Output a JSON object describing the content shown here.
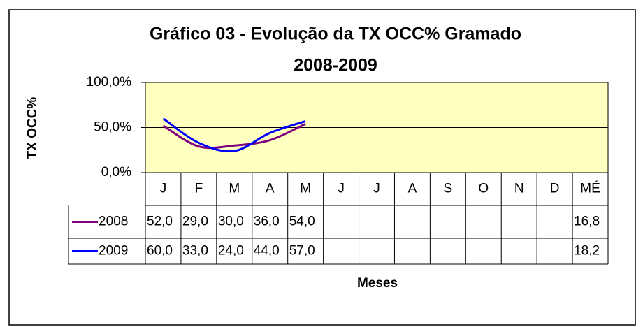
{
  "chart_data": {
    "type": "line",
    "title": [
      "Gráfico 03 - Evolução da TX OCC% Gramado",
      "2008-2009"
    ],
    "x_label": "Meses",
    "y_label": "TX OCC%",
    "categories": [
      "J",
      "F",
      "M",
      "A",
      "M",
      "J",
      "J",
      "A",
      "S",
      "O",
      "N",
      "D",
      "MÉ"
    ],
    "series": [
      {
        "name": "2008",
        "color": "#800080",
        "values": [
          52,
          29,
          30,
          36,
          54,
          null,
          null,
          null,
          null,
          null,
          null,
          null,
          16.8
        ],
        "value_labels": [
          "52,0",
          "29,0",
          "30,0",
          "36,0",
          "54,0",
          null,
          null,
          null,
          null,
          null,
          null,
          null,
          "16,8"
        ]
      },
      {
        "name": "2009",
        "color": "#0000ff",
        "values": [
          60,
          33,
          24,
          44,
          57,
          null,
          null,
          null,
          null,
          null,
          null,
          null,
          18.2
        ],
        "value_labels": [
          "60,0",
          "33,0",
          "24,0",
          "44,0",
          "57,0",
          null,
          null,
          null,
          null,
          null,
          null,
          null,
          "18,2"
        ]
      }
    ],
    "ylim": [
      0,
      100
    ],
    "yticks": [
      {
        "value": 0,
        "label": "0,0%"
      },
      {
        "value": 50,
        "label": "50,0%"
      },
      {
        "value": 100,
        "label": "100,0%"
      }
    ],
    "grid": true,
    "plot_background": "#ffffc0"
  }
}
